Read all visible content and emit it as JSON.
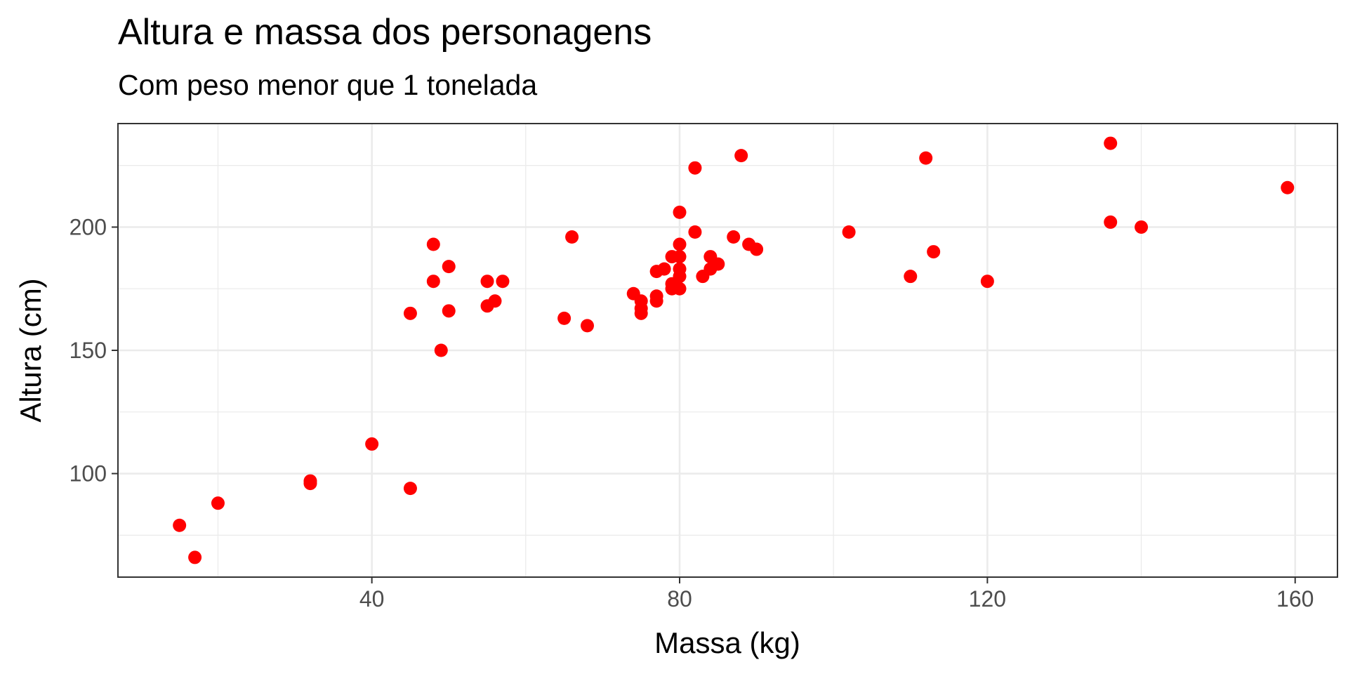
{
  "chart_data": {
    "type": "scatter",
    "title": "Altura e massa dos personagens",
    "subtitle": "Com peso menor que 1 tonelada",
    "xlabel": "Massa (kg)",
    "ylabel": "Altura (cm)",
    "xlim": [
      7,
      165.5
    ],
    "ylim": [
      58,
      242
    ],
    "xticks": [
      40,
      80,
      120,
      160
    ],
    "yticks": [
      100,
      150,
      200
    ],
    "xminor": [
      20,
      60,
      100,
      140
    ],
    "yminor": [
      75,
      125,
      175,
      225
    ],
    "grid": true,
    "point_color": "#ff0000",
    "points": [
      {
        "x": 15,
        "y": 79
      },
      {
        "x": 17,
        "y": 66
      },
      {
        "x": 20,
        "y": 88
      },
      {
        "x": 32,
        "y": 97
      },
      {
        "x": 32,
        "y": 96
      },
      {
        "x": 40,
        "y": 112
      },
      {
        "x": 45,
        "y": 94
      },
      {
        "x": 45,
        "y": 165
      },
      {
        "x": 48,
        "y": 193
      },
      {
        "x": 48,
        "y": 178
      },
      {
        "x": 49,
        "y": 150
      },
      {
        "x": 50,
        "y": 184
      },
      {
        "x": 50,
        "y": 166
      },
      {
        "x": 55,
        "y": 178
      },
      {
        "x": 55,
        "y": 168
      },
      {
        "x": 56,
        "y": 170
      },
      {
        "x": 57,
        "y": 178
      },
      {
        "x": 65,
        "y": 163
      },
      {
        "x": 66,
        "y": 196
      },
      {
        "x": 68,
        "y": 160
      },
      {
        "x": 74,
        "y": 173
      },
      {
        "x": 75,
        "y": 170
      },
      {
        "x": 75,
        "y": 167
      },
      {
        "x": 75,
        "y": 165
      },
      {
        "x": 77,
        "y": 182
      },
      {
        "x": 77,
        "y": 172
      },
      {
        "x": 77,
        "y": 170
      },
      {
        "x": 78,
        "y": 183
      },
      {
        "x": 79,
        "y": 188
      },
      {
        "x": 79,
        "y": 177
      },
      {
        "x": 79,
        "y": 175
      },
      {
        "x": 80,
        "y": 206
      },
      {
        "x": 80,
        "y": 193
      },
      {
        "x": 80,
        "y": 188
      },
      {
        "x": 80,
        "y": 183
      },
      {
        "x": 80,
        "y": 180
      },
      {
        "x": 80,
        "y": 175
      },
      {
        "x": 82,
        "y": 224
      },
      {
        "x": 82,
        "y": 198
      },
      {
        "x": 83,
        "y": 180
      },
      {
        "x": 84,
        "y": 188
      },
      {
        "x": 84,
        "y": 183
      },
      {
        "x": 85,
        "y": 185
      },
      {
        "x": 87,
        "y": 196
      },
      {
        "x": 88,
        "y": 229
      },
      {
        "x": 89,
        "y": 193
      },
      {
        "x": 90,
        "y": 191
      },
      {
        "x": 102,
        "y": 198
      },
      {
        "x": 110,
        "y": 180
      },
      {
        "x": 112,
        "y": 228
      },
      {
        "x": 113,
        "y": 190
      },
      {
        "x": 120,
        "y": 178
      },
      {
        "x": 136,
        "y": 234
      },
      {
        "x": 136,
        "y": 202
      },
      {
        "x": 140,
        "y": 200
      },
      {
        "x": 159,
        "y": 216
      }
    ]
  }
}
